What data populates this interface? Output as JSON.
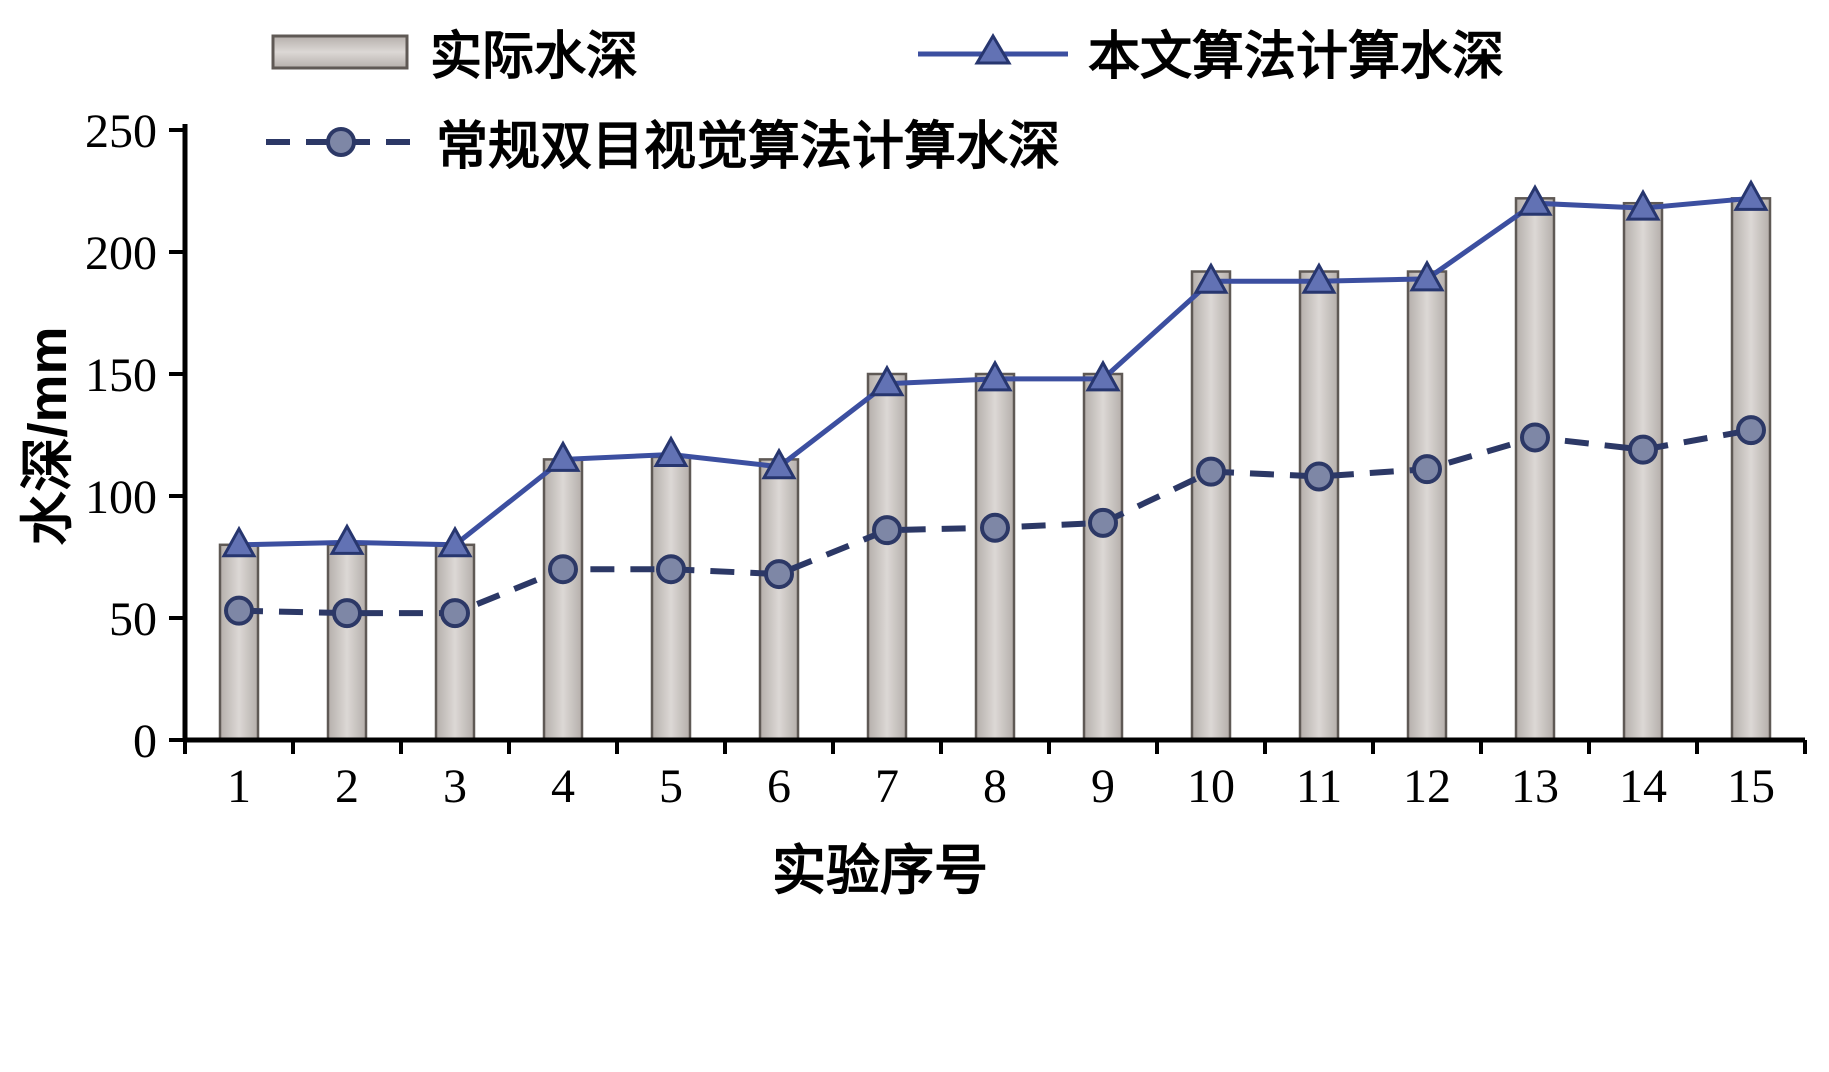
{
  "chart_data": {
    "type": "bar",
    "title": "",
    "xlabel": "实验序号",
    "ylabel": "水深/mm",
    "ylim": [
      0,
      250
    ],
    "yticks": [
      0,
      50,
      100,
      150,
      200,
      250
    ],
    "categories": [
      "1",
      "2",
      "3",
      "4",
      "5",
      "6",
      "7",
      "8",
      "9",
      "10",
      "11",
      "12",
      "13",
      "14",
      "15"
    ],
    "legend_position": "top",
    "grid": "off",
    "series": [
      {
        "name": "实际水深",
        "type": "bar",
        "values": [
          80,
          80,
          80,
          115,
          116,
          115,
          150,
          150,
          150,
          192,
          192,
          192,
          222,
          220,
          222
        ],
        "fill": "#b5afab",
        "fill_light": "#dcd8d5",
        "edge": "#5f5955"
      },
      {
        "name": "本文算法计算水深",
        "type": "line",
        "marker": "triangle",
        "values": [
          80,
          81,
          80,
          115,
          117,
          112,
          146,
          148,
          148,
          188,
          188,
          189,
          220,
          218,
          222
        ],
        "color": "#3c4fa0",
        "marker_fill": "#6272b4",
        "marker_edge": "#27366f"
      },
      {
        "name": "常规双目视觉算法计算水深",
        "type": "line-dashed",
        "marker": "circle",
        "values": [
          53,
          52,
          52,
          70,
          70,
          68,
          86,
          87,
          89,
          110,
          108,
          111,
          124,
          119,
          127
        ],
        "color": "#2c3866",
        "marker_fill": "#7e87a6",
        "marker_edge": "#2c3866"
      }
    ]
  }
}
